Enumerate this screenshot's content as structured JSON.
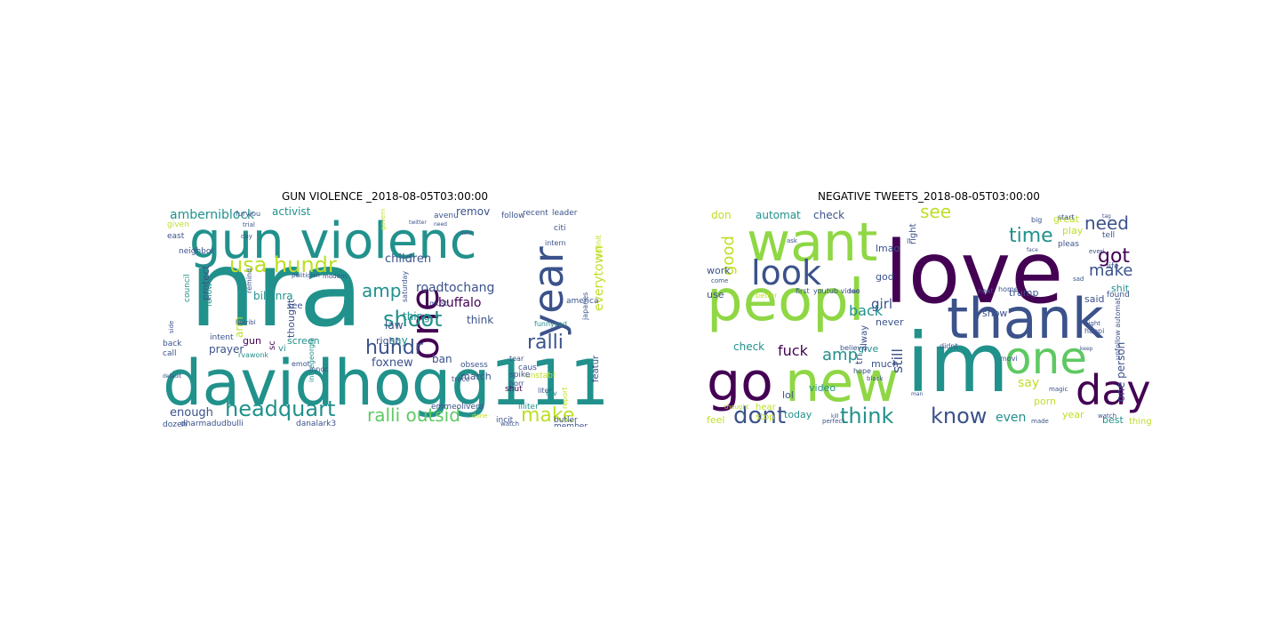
{
  "palette": {
    "dark_purple": "#440154",
    "indigo": "#3b528b",
    "teal": "#21918c",
    "green": "#5ec962",
    "light_green": "#8fd744",
    "yellow_green": "#bddf26",
    "yellow": "#fde725",
    "slate": "#414487",
    "sea": "#2a788e",
    "mint": "#35b779"
  },
  "panels": [
    {
      "title": "GUN VIOLENCE _2018-08-05T03:00:00",
      "words": [
        {
          "text": "nra",
          "weight": 100,
          "color": "teal"
        },
        {
          "text": "davidhogg111",
          "weight": 88,
          "color": "teal"
        },
        {
          "text": "gun violenc",
          "weight": 70,
          "color": "teal"
        },
        {
          "text": "year",
          "weight": 52,
          "color": "indigo"
        },
        {
          "text": "one",
          "weight": 48,
          "color": "dark_purple"
        },
        {
          "text": "headquart",
          "weight": 30,
          "color": "teal"
        },
        {
          "text": "usa hundr",
          "weight": 26,
          "color": "yellow_green"
        },
        {
          "text": "shoot",
          "weight": 26,
          "color": "teal"
        },
        {
          "text": "hundr",
          "weight": 22,
          "color": "indigo"
        },
        {
          "text": "ralli",
          "weight": 22,
          "color": "indigo"
        },
        {
          "text": "make",
          "weight": 22,
          "color": "yellow_green"
        },
        {
          "text": "ralli outsid",
          "weight": 20,
          "color": "green"
        },
        {
          "text": "amp",
          "weight": 18,
          "color": "teal"
        },
        {
          "text": "everytown",
          "weight": 14,
          "color": "yellow_green"
        },
        {
          "text": "roadtochang",
          "weight": 14,
          "color": "indigo"
        },
        {
          "text": "buffalo",
          "weight": 14,
          "color": "dark_purple"
        },
        {
          "text": "amberniblock",
          "weight": 13,
          "color": "teal"
        },
        {
          "text": "enough",
          "weight": 13,
          "color": "indigo"
        },
        {
          "text": "children",
          "weight": 13,
          "color": "indigo"
        },
        {
          "text": "foxnew",
          "weight": 13,
          "color": "indigo"
        },
        {
          "text": "thing",
          "weight": 12,
          "color": "teal"
        },
        {
          "text": "think",
          "weight": 12,
          "color": "indigo"
        },
        {
          "text": "law",
          "weight": 12,
          "color": "indigo"
        },
        {
          "text": "ban",
          "weight": 12,
          "color": "indigo"
        },
        {
          "text": "arm",
          "weight": 12,
          "color": "yellow_green"
        },
        {
          "text": "say",
          "weight": 12,
          "color": "teal"
        },
        {
          "text": "prayer",
          "weight": 12,
          "color": "indigo"
        },
        {
          "text": "billynra",
          "weight": 12,
          "color": "teal"
        },
        {
          "text": "activist",
          "weight": 12,
          "color": "teal"
        },
        {
          "text": "remov",
          "weight": 11,
          "color": "indigo"
        },
        {
          "text": "protect",
          "weight": 11,
          "color": "indigo"
        },
        {
          "text": "right",
          "weight": 11,
          "color": "indigo"
        },
        {
          "text": "screen",
          "weight": 11,
          "color": "teal"
        },
        {
          "text": "thought",
          "weight": 11,
          "color": "indigo"
        },
        {
          "text": "gun",
          "weight": 11,
          "color": "dark_purple"
        },
        {
          "text": "march",
          "weight": 11,
          "color": "indigo"
        },
        {
          "text": "featur",
          "weight": 10,
          "color": "indigo"
        },
        {
          "text": "vi",
          "weight": 10,
          "color": "teal"
        },
        {
          "text": "sc",
          "weight": 10,
          "color": "dark_purple"
        },
        {
          "text": "see",
          "weight": 10,
          "color": "indigo"
        },
        {
          "text": "unstabl",
          "weight": 9,
          "color": "yellow_green"
        },
        {
          "text": "emmeolivera",
          "weight": 9,
          "color": "indigo"
        },
        {
          "text": "leader",
          "weight": 9,
          "color": "indigo"
        },
        {
          "text": "recent",
          "weight": 9,
          "color": "indigo"
        },
        {
          "text": "citi",
          "weight": 9,
          "color": "indigo"
        },
        {
          "text": "follow",
          "weight": 9,
          "color": "indigo"
        },
        {
          "text": "avenu",
          "weight": 9,
          "color": "indigo"
        },
        {
          "text": "america",
          "weight": 9,
          "color": "indigo"
        },
        {
          "text": "given",
          "weight": 9,
          "color": "yellow_green"
        },
        {
          "text": "east",
          "weight": 9,
          "color": "indigo"
        },
        {
          "text": "neighbor",
          "weight": 9,
          "color": "indigo"
        },
        {
          "text": "council",
          "weight": 9,
          "color": "teal"
        },
        {
          "text": "fellow",
          "weight": 9,
          "color": "teal"
        },
        {
          "text": "intent",
          "weight": 9,
          "color": "indigo"
        },
        {
          "text": "call",
          "weight": 9,
          "color": "indigo"
        },
        {
          "text": "back",
          "weight": 9,
          "color": "indigo"
        },
        {
          "text": "dozen",
          "weight": 9,
          "color": "indigo"
        },
        {
          "text": "dharmadudbulli",
          "weight": 9,
          "color": "indigo"
        },
        {
          "text": "danalark3",
          "weight": 9,
          "color": "indigo"
        },
        {
          "text": "butler",
          "weight": 9,
          "color": "indigo"
        },
        {
          "text": "member",
          "weight": 9,
          "color": "indigo"
        },
        {
          "text": "incit",
          "weight": 9,
          "color": "indigo"
        },
        {
          "text": "illiter",
          "weight": 9,
          "color": "teal"
        },
        {
          "text": "shut",
          "weight": 9,
          "color": "dark_purple"
        },
        {
          "text": "spike",
          "weight": 9,
          "color": "indigo"
        },
        {
          "text": "obsess",
          "weight": 9,
          "color": "indigo"
        },
        {
          "text": "caus",
          "weight": 9,
          "color": "indigo"
        },
        {
          "text": "tear",
          "weight": 8,
          "color": "indigo"
        },
        {
          "text": "horr",
          "weight": 8,
          "color": "indigo"
        },
        {
          "text": "trace",
          "weight": 8,
          "color": "indigo"
        },
        {
          "text": "must",
          "weight": 8,
          "color": "indigo"
        },
        {
          "text": "emot",
          "weight": 8,
          "color": "indigo"
        },
        {
          "text": "innoc",
          "weight": 8,
          "color": "indigo"
        },
        {
          "text": "rvawonk",
          "weight": 8,
          "color": "teal"
        },
        {
          "text": "infoegeorgia",
          "weight": 8,
          "color": "teal"
        },
        {
          "text": "remind",
          "weight": 8,
          "color": "indigo"
        },
        {
          "text": "saturday",
          "weight": 8,
          "color": "indigo"
        },
        {
          "text": "japanes",
          "weight": 8,
          "color": "indigo"
        },
        {
          "text": "funnysad",
          "weight": 8,
          "color": "teal"
        },
        {
          "text": "liter",
          "weight": 8,
          "color": "indigo"
        },
        {
          "text": "rev",
          "weight": 8,
          "color": "teal"
        },
        {
          "text": "report",
          "weight": 8,
          "color": "yellow_green"
        },
        {
          "text": "intern",
          "weight": 8,
          "color": "indigo"
        },
        {
          "text": "definit",
          "weight": 8,
          "color": "yellow_green"
        },
        {
          "text": "furyiou",
          "weight": 8,
          "color": "indigo"
        },
        {
          "text": "trial",
          "weight": 7,
          "color": "indigo"
        },
        {
          "text": "day",
          "weight": 7,
          "color": "indigo"
        },
        {
          "text": "modern",
          "weight": 7,
          "color": "indigo"
        },
        {
          "text": "govern",
          "weight": 7,
          "color": "yellow_green"
        },
        {
          "text": "politician",
          "weight": 7,
          "color": "indigo"
        },
        {
          "text": "horribl",
          "weight": 7,
          "color": "indigo"
        },
        {
          "text": "side",
          "weight": 7,
          "color": "indigo"
        },
        {
          "text": "done",
          "weight": 7,
          "color": "yellow_green"
        },
        {
          "text": "watch",
          "weight": 7,
          "color": "indigo"
        },
        {
          "text": "default",
          "weight": 6,
          "color": "indigo"
        },
        {
          "text": "need",
          "weight": 6,
          "color": "indigo"
        },
        {
          "text": "dont",
          "weight": 6,
          "color": "indigo"
        },
        {
          "text": "twitter",
          "weight": 6,
          "color": "indigo"
        }
      ]
    },
    {
      "title": "NEGATIVE TWEETS_2018-08-05T03:00:00",
      "words": [
        {
          "text": "love",
          "weight": 100,
          "color": "dark_purple"
        },
        {
          "text": "peopl",
          "weight": 85,
          "color": "light_green"
        },
        {
          "text": "im",
          "weight": 84,
          "color": "teal"
        },
        {
          "text": "thank",
          "weight": 76,
          "color": "indigo"
        },
        {
          "text": "new",
          "weight": 62,
          "color": "light_green"
        },
        {
          "text": "want",
          "weight": 55,
          "color": "light_green"
        },
        {
          "text": "go",
          "weight": 54,
          "color": "dark_purple"
        },
        {
          "text": "one",
          "weight": 50,
          "color": "green"
        },
        {
          "text": "day",
          "weight": 44,
          "color": "dark_purple"
        },
        {
          "text": "look",
          "weight": 38,
          "color": "indigo"
        },
        {
          "text": "dont",
          "weight": 26,
          "color": "indigo"
        },
        {
          "text": "think",
          "weight": 24,
          "color": "teal"
        },
        {
          "text": "know",
          "weight": 24,
          "color": "indigo"
        },
        {
          "text": "got",
          "weight": 22,
          "color": "dark_purple"
        },
        {
          "text": "time",
          "weight": 22,
          "color": "teal"
        },
        {
          "text": "need",
          "weight": 20,
          "color": "indigo"
        },
        {
          "text": "see",
          "weight": 20,
          "color": "yellow_green"
        },
        {
          "text": "make",
          "weight": 18,
          "color": "indigo"
        },
        {
          "text": "good",
          "weight": 18,
          "color": "yellow_green"
        },
        {
          "text": "amp",
          "weight": 18,
          "color": "teal"
        },
        {
          "text": "fuck",
          "weight": 16,
          "color": "dark_purple"
        },
        {
          "text": "back",
          "weight": 16,
          "color": "teal"
        },
        {
          "text": "still",
          "weight": 16,
          "color": "indigo"
        },
        {
          "text": "girl",
          "weight": 14,
          "color": "indigo"
        },
        {
          "text": "say",
          "weight": 14,
          "color": "yellow_green"
        },
        {
          "text": "even",
          "weight": 14,
          "color": "teal"
        },
        {
          "text": "one person",
          "weight": 12,
          "color": "indigo"
        },
        {
          "text": "check",
          "weight": 12,
          "color": "teal"
        },
        {
          "text": "automat",
          "weight": 12,
          "color": "teal"
        },
        {
          "text": "check",
          "weight": 12,
          "color": "indigo"
        },
        {
          "text": "don",
          "weight": 12,
          "color": "yellow_green"
        },
        {
          "text": "lmao",
          "weight": 11,
          "color": "indigo"
        },
        {
          "text": "great",
          "weight": 11,
          "color": "yellow_green"
        },
        {
          "text": "play",
          "weight": 11,
          "color": "yellow_green"
        },
        {
          "text": "shit",
          "weight": 11,
          "color": "teal"
        },
        {
          "text": "trump",
          "weight": 11,
          "color": "indigo"
        },
        {
          "text": "said",
          "weight": 11,
          "color": "indigo"
        },
        {
          "text": "video",
          "weight": 11,
          "color": "teal"
        },
        {
          "text": "lol",
          "weight": 11,
          "color": "indigo"
        },
        {
          "text": "feel",
          "weight": 11,
          "color": "yellow_green"
        },
        {
          "text": "today",
          "weight": 11,
          "color": "teal"
        },
        {
          "text": "porn",
          "weight": 11,
          "color": "yellow_green"
        },
        {
          "text": "year",
          "weight": 11,
          "color": "yellow_green"
        },
        {
          "text": "best",
          "weight": 11,
          "color": "teal"
        },
        {
          "text": "show",
          "weight": 11,
          "color": "indigo"
        },
        {
          "text": "never",
          "weight": 11,
          "color": "indigo"
        },
        {
          "text": "give",
          "weight": 11,
          "color": "teal"
        },
        {
          "text": "tri",
          "weight": 11,
          "color": "indigo"
        },
        {
          "text": "much",
          "weight": 11,
          "color": "indigo"
        },
        {
          "text": "god",
          "weight": 11,
          "color": "indigo"
        },
        {
          "text": "use",
          "weight": 11,
          "color": "indigo"
        },
        {
          "text": "work",
          "weight": 11,
          "color": "indigo"
        },
        {
          "text": "alway",
          "weight": 10,
          "color": "indigo"
        },
        {
          "text": "right",
          "weight": 10,
          "color": "indigo"
        },
        {
          "text": "hear",
          "weight": 10,
          "color": "yellow_green"
        },
        {
          "text": "stop",
          "weight": 10,
          "color": "yellow_green"
        },
        {
          "text": "thing",
          "weight": 10,
          "color": "yellow_green"
        },
        {
          "text": "pleas",
          "weight": 9,
          "color": "indigo"
        },
        {
          "text": "tell",
          "weight": 9,
          "color": "indigo"
        },
        {
          "text": "life",
          "weight": 9,
          "color": "indigo"
        },
        {
          "text": "found",
          "weight": 9,
          "color": "indigo"
        },
        {
          "text": "next",
          "weight": 8,
          "color": "indigo"
        },
        {
          "text": "home",
          "weight": 8,
          "color": "indigo"
        },
        {
          "text": "first",
          "weight": 8,
          "color": "indigo"
        },
        {
          "text": "youtub video",
          "weight": 8,
          "color": "indigo"
        },
        {
          "text": "happi",
          "weight": 8,
          "color": "indigo"
        },
        {
          "text": "big",
          "weight": 8,
          "color": "indigo"
        },
        {
          "text": "start",
          "weight": 8,
          "color": "indigo"
        },
        {
          "text": "unfollow automat",
          "weight": 8,
          "color": "indigo"
        },
        {
          "text": "movi",
          "weight": 8,
          "color": "indigo"
        },
        {
          "text": "hope",
          "weight": 8,
          "color": "indigo"
        },
        {
          "text": "believ",
          "weight": 8,
          "color": "indigo"
        },
        {
          "text": "didnt",
          "weight": 8,
          "color": "indigo"
        },
        {
          "text": "better",
          "weight": 8,
          "color": "yellow_green"
        },
        {
          "text": "ll",
          "weight": 8,
          "color": "indigo"
        },
        {
          "text": "sad",
          "weight": 7,
          "color": "indigo"
        },
        {
          "text": "black",
          "weight": 7,
          "color": "indigo"
        },
        {
          "text": "thought",
          "weight": 7,
          "color": "yellow_green"
        },
        {
          "text": "perfect",
          "weight": 7,
          "color": "indigo"
        },
        {
          "text": "made",
          "weight": 7,
          "color": "indigo"
        },
        {
          "text": "watch",
          "weight": 7,
          "color": "indigo"
        },
        {
          "text": "everi",
          "weight": 7,
          "color": "indigo"
        },
        {
          "text": "night",
          "weight": 7,
          "color": "indigo"
        },
        {
          "text": "magic",
          "weight": 7,
          "color": "indigo"
        },
        {
          "text": "come",
          "weight": 7,
          "color": "indigo"
        },
        {
          "text": "ask",
          "weight": 7,
          "color": "indigo"
        },
        {
          "text": "man",
          "weight": 7,
          "color": "indigo"
        },
        {
          "text": "fred",
          "weight": 6,
          "color": "indigo"
        },
        {
          "text": "kill",
          "weight": 6,
          "color": "indigo"
        },
        {
          "text": "keep",
          "weight": 6,
          "color": "indigo"
        },
        {
          "text": "tag",
          "weight": 6,
          "color": "indigo"
        },
        {
          "text": "face",
          "weight": 6,
          "color": "indigo"
        }
      ]
    }
  ]
}
